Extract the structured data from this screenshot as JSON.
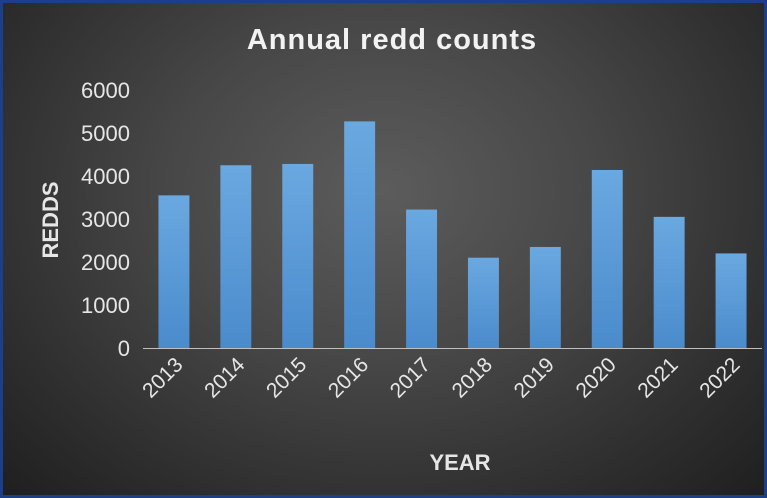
{
  "chart_data": {
    "type": "bar",
    "title": "Annual redd counts",
    "xlabel": "YEAR",
    "ylabel": "REDDS",
    "categories": [
      "2013",
      "2014",
      "2015",
      "2016",
      "2017",
      "2018",
      "2019",
      "2020",
      "2021",
      "2022"
    ],
    "values": [
      3550,
      4250,
      4280,
      5270,
      3220,
      2100,
      2350,
      4140,
      3050,
      2200
    ],
    "ylim": [
      0,
      6000
    ],
    "yticks": [
      "0",
      "1000",
      "2000",
      "3000",
      "4000",
      "5000",
      "6000"
    ],
    "grid": false,
    "legend": "none",
    "colors": {
      "bar": "#5b9bd5",
      "text": "#e6e6e6",
      "title": "#f2f2f2",
      "axis": "#bfbfbf"
    }
  }
}
